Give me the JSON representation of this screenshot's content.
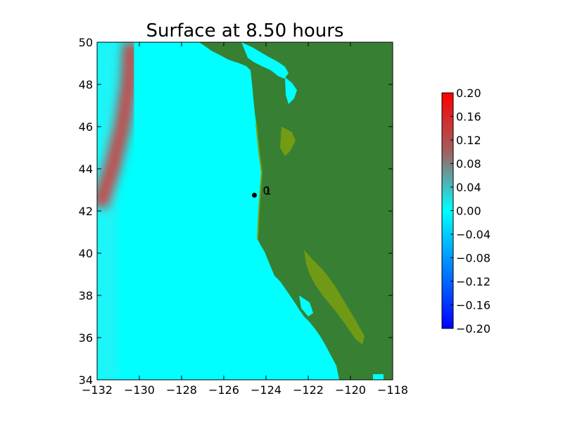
{
  "chart_data": {
    "type": "heatmap",
    "title": "Surface at 8.50 hours",
    "xlabel": "",
    "ylabel": "",
    "xlim": [
      -132,
      -118
    ],
    "ylim": [
      34,
      50
    ],
    "xticks": [
      -132,
      -130,
      -128,
      -126,
      -124,
      -122,
      -120,
      -118
    ],
    "xtick_labels": [
      "−132",
      "−130",
      "−128",
      "−126",
      "−124",
      "−122",
      "−120",
      "−118"
    ],
    "yticks": [
      34,
      36,
      38,
      40,
      42,
      44,
      46,
      48,
      50
    ],
    "ytick_labels": [
      "34",
      "36",
      "38",
      "40",
      "42",
      "44",
      "46",
      "48",
      "50"
    ],
    "grid": false,
    "colorbar": {
      "range": [
        -0.2,
        0.2
      ],
      "ticks": [
        0.2,
        0.16,
        0.12,
        0.08,
        0.04,
        0.0,
        -0.04,
        -0.08,
        -0.12,
        -0.16,
        -0.2
      ],
      "tick_labels": [
        "0.20",
        "0.16",
        "0.12",
        "0.08",
        "0.04",
        "0.00",
        "−0.04",
        "−0.08",
        "−0.12",
        "−0.16",
        "−0.20"
      ]
    },
    "wave_front": {
      "description_values": "band of surface elevation ~0.12 near western edge",
      "points": [
        [
          -130.4,
          50
        ],
        [
          -130.5,
          48
        ],
        [
          -130.8,
          46
        ],
        [
          -131.3,
          44
        ],
        [
          -131.9,
          42.2
        ]
      ],
      "peak": 0.12
    },
    "markers": [
      {
        "label": "0",
        "lon": -124.55,
        "lat": 42.75
      },
      {
        "label": "1",
        "lon": -124.55,
        "lat": 42.75
      }
    ],
    "gauge_labels": [
      "0",
      "1"
    ],
    "colors": {
      "ocean": "#00ffff",
      "land": "#378033",
      "land_light": "#7a9f10",
      "wave": "#c05050",
      "marker": "#000000"
    }
  }
}
